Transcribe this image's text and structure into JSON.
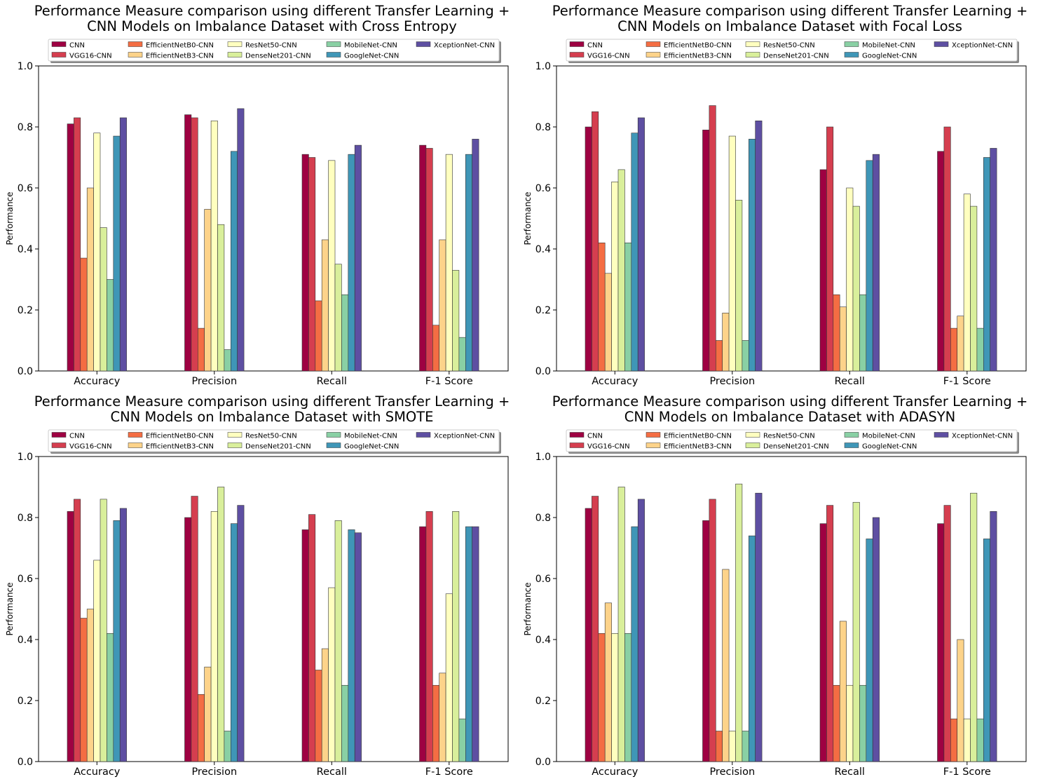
{
  "figure": {
    "layout": "2x2 grid of grouped bar charts"
  },
  "legend_entries": [
    "CNN",
    "VGG16-CNN",
    "EfficientNetB0-CNN",
    "EfficientNetB3-CNN",
    "ResNet50-CNN",
    "DenseNet201-CNN",
    "MobileNet-CNN",
    "GoogleNet-CNN",
    "XceptionNet-CNN"
  ],
  "series_colors": [
    "#9e0142",
    "#d53e4f",
    "#f46d43",
    "#fdae61",
    "#fee08b",
    "#e6f598",
    "#abdda4",
    "#66c2a5",
    "#3288bd",
    "#5e4fa2"
  ],
  "chart_data": [
    {
      "type": "bar",
      "title_line1": "Performance Measure comparison using  different Transfer Learning +",
      "title_line2": "CNN Models on Imbalance Dataset with Cross Entropy",
      "ylabel": "Performance",
      "xlabel": "",
      "ylim": [
        0,
        1.0
      ],
      "yticks": [
        "0.0",
        "0.2",
        "0.4",
        "0.6",
        "0.8",
        "1.0"
      ],
      "categories": [
        "Accuracy",
        "Precision",
        "Recall",
        "F-1 Score"
      ],
      "legend_position": "top-center",
      "series": [
        {
          "name": "CNN",
          "color": "#9e0142",
          "values": [
            0.81,
            0.84,
            0.71,
            0.74
          ]
        },
        {
          "name": "VGG16-CNN",
          "color": "#d53e4f",
          "values": [
            0.83,
            0.83,
            0.7,
            0.73
          ]
        },
        {
          "name": "EfficientNetB0-CNN",
          "color": "#f46d43",
          "values": [
            0.37,
            0.14,
            0.23,
            0.15
          ]
        },
        {
          "name": "EfficientNetB3-CNN",
          "color": "#fdd38a",
          "values": [
            0.6,
            0.53,
            0.43,
            0.43
          ]
        },
        {
          "name": "ResNet50-CNN",
          "color": "#ffffbf",
          "values": [
            0.78,
            0.82,
            0.69,
            0.71
          ]
        },
        {
          "name": "DenseNet201-CNN",
          "color": "#d9ef9b",
          "values": [
            0.47,
            0.48,
            0.35,
            0.33
          ]
        },
        {
          "name": "MobileNet-CNN",
          "color": "#89d0a4",
          "values": [
            0.3,
            0.07,
            0.25,
            0.11
          ]
        },
        {
          "name": "GoogleNet-CNN",
          "color": "#3f96b7",
          "values": [
            0.77,
            0.72,
            0.71,
            0.71
          ]
        },
        {
          "name": "XceptionNet-CNN",
          "color": "#5e4fa2",
          "values": [
            0.83,
            0.86,
            0.74,
            0.76
          ]
        }
      ]
    },
    {
      "type": "bar",
      "title_line1": "Performance Measure comparison using  different Transfer Learning +",
      "title_line2": "CNN Models on Imbalance Dataset with Focal Loss",
      "ylabel": "Performance",
      "xlabel": "",
      "ylim": [
        0,
        1.0
      ],
      "yticks": [
        "0.0",
        "0.2",
        "0.4",
        "0.6",
        "0.8",
        "1.0"
      ],
      "categories": [
        "Accuracy",
        "Precision",
        "Recall",
        "F-1 Score"
      ],
      "legend_position": "top-center",
      "series": [
        {
          "name": "CNN",
          "color": "#9e0142",
          "values": [
            0.8,
            0.79,
            0.66,
            0.72
          ]
        },
        {
          "name": "VGG16-CNN",
          "color": "#d53e4f",
          "values": [
            0.85,
            0.87,
            0.8,
            0.8
          ]
        },
        {
          "name": "EfficientNetB0-CNN",
          "color": "#f46d43",
          "values": [
            0.42,
            0.1,
            0.25,
            0.14
          ]
        },
        {
          "name": "EfficientNetB3-CNN",
          "color": "#fdd38a",
          "values": [
            0.32,
            0.19,
            0.21,
            0.18
          ]
        },
        {
          "name": "ResNet50-CNN",
          "color": "#ffffbf",
          "values": [
            0.62,
            0.77,
            0.6,
            0.58
          ]
        },
        {
          "name": "DenseNet201-CNN",
          "color": "#d9ef9b",
          "values": [
            0.66,
            0.56,
            0.54,
            0.54
          ]
        },
        {
          "name": "MobileNet-CNN",
          "color": "#89d0a4",
          "values": [
            0.42,
            0.1,
            0.25,
            0.14
          ]
        },
        {
          "name": "GoogleNet-CNN",
          "color": "#3f96b7",
          "values": [
            0.78,
            0.76,
            0.69,
            0.7
          ]
        },
        {
          "name": "XceptionNet-CNN",
          "color": "#5e4fa2",
          "values": [
            0.83,
            0.82,
            0.71,
            0.73
          ]
        }
      ]
    },
    {
      "type": "bar",
      "title_line1": "Performance Measure comparison using  different Transfer Learning +",
      "title_line2": "CNN Models on Imbalance Dataset with SMOTE",
      "ylabel": "Performance",
      "xlabel": "",
      "ylim": [
        0,
        1.0
      ],
      "yticks": [
        "0.0",
        "0.2",
        "0.4",
        "0.6",
        "0.8",
        "1.0"
      ],
      "categories": [
        "Accuracy",
        "Precision",
        "Recall",
        "F-1 Score"
      ],
      "legend_position": "top-center",
      "series": [
        {
          "name": "CNN",
          "color": "#9e0142",
          "values": [
            0.82,
            0.8,
            0.76,
            0.77
          ]
        },
        {
          "name": "VGG16-CNN",
          "color": "#d53e4f",
          "values": [
            0.86,
            0.87,
            0.81,
            0.82
          ]
        },
        {
          "name": "EfficientNetB0-CNN",
          "color": "#f46d43",
          "values": [
            0.47,
            0.22,
            0.3,
            0.25
          ]
        },
        {
          "name": "EfficientNetB3-CNN",
          "color": "#fdd38a",
          "values": [
            0.5,
            0.31,
            0.37,
            0.29
          ]
        },
        {
          "name": "ResNet50-CNN",
          "color": "#ffffbf",
          "values": [
            0.66,
            0.82,
            0.57,
            0.55
          ]
        },
        {
          "name": "DenseNet201-CNN",
          "color": "#d9ef9b",
          "values": [
            0.86,
            0.9,
            0.79,
            0.82
          ]
        },
        {
          "name": "MobileNet-CNN",
          "color": "#89d0a4",
          "values": [
            0.42,
            0.1,
            0.25,
            0.14
          ]
        },
        {
          "name": "GoogleNet-CNN",
          "color": "#3f96b7",
          "values": [
            0.79,
            0.78,
            0.76,
            0.77
          ]
        },
        {
          "name": "XceptionNet-CNN",
          "color": "#5e4fa2",
          "values": [
            0.83,
            0.84,
            0.75,
            0.77
          ]
        }
      ]
    },
    {
      "type": "bar",
      "title_line1": "Performance Measure comparison using  different Transfer Learning +",
      "title_line2": "CNN Models on Imbalance Dataset with ADASYN",
      "ylabel": "Performance",
      "xlabel": "",
      "ylim": [
        0,
        1.0
      ],
      "yticks": [
        "0.0",
        "0.2",
        "0.4",
        "0.6",
        "0.8",
        "1.0"
      ],
      "categories": [
        "Accuracy",
        "Precision",
        "Recall",
        "F-1 Score"
      ],
      "legend_position": "top-center",
      "series": [
        {
          "name": "CNN",
          "color": "#9e0142",
          "values": [
            0.83,
            0.79,
            0.78,
            0.78
          ]
        },
        {
          "name": "VGG16-CNN",
          "color": "#d53e4f",
          "values": [
            0.87,
            0.86,
            0.84,
            0.84
          ]
        },
        {
          "name": "EfficientNetB0-CNN",
          "color": "#f46d43",
          "values": [
            0.42,
            0.1,
            0.25,
            0.14
          ]
        },
        {
          "name": "EfficientNetB3-CNN",
          "color": "#fdd38a",
          "values": [
            0.52,
            0.63,
            0.46,
            0.4
          ]
        },
        {
          "name": "ResNet50-CNN",
          "color": "#ffffbf",
          "values": [
            0.42,
            0.1,
            0.25,
            0.14
          ]
        },
        {
          "name": "DenseNet201-CNN",
          "color": "#d9ef9b",
          "values": [
            0.9,
            0.91,
            0.85,
            0.88
          ]
        },
        {
          "name": "MobileNet-CNN",
          "color": "#89d0a4",
          "values": [
            0.42,
            0.1,
            0.25,
            0.14
          ]
        },
        {
          "name": "GoogleNet-CNN",
          "color": "#3f96b7",
          "values": [
            0.77,
            0.74,
            0.73,
            0.73
          ]
        },
        {
          "name": "XceptionNet-CNN",
          "color": "#5e4fa2",
          "values": [
            0.86,
            0.88,
            0.8,
            0.82
          ]
        }
      ]
    }
  ]
}
